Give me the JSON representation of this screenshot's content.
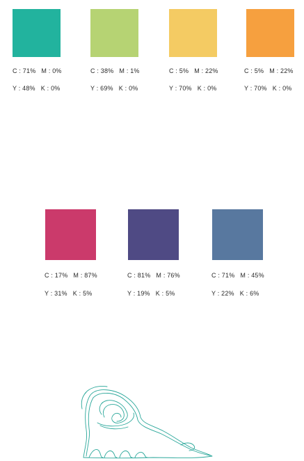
{
  "swatches": [
    {
      "color": "#22b39e",
      "c": "C : 71%",
      "m": "M : 0%",
      "y": "Y : 48%",
      "k": "K : 0%"
    },
    {
      "color": "#b6d373",
      "c": "C : 38%",
      "m": "M : 1%",
      "y": "Y : 69%",
      "k": "K : 0%"
    },
    {
      "color": "#f4cb63",
      "c": "C : 5%",
      "m": "M : 22%",
      "y": "Y : 70%",
      "k": "K : 0%"
    },
    {
      "color": "#f6a03f",
      "c": "C : 5%",
      "m": "M : 22%",
      "y": "Y : 70%",
      "k": "K : 0%"
    },
    {
      "color": "#cb3a6b",
      "c": "C : 17%",
      "m": "M : 87%",
      "y": "Y : 31%",
      "k": "K : 5%"
    },
    {
      "color": "#4f4a84",
      "c": "C : 81%",
      "m": "M : 76%",
      "y": "Y : 19%",
      "k": "K : 5%"
    },
    {
      "color": "#58789f",
      "c": "C : 71%",
      "m": "M : 45%",
      "y": "Y : 22%",
      "k": "K : 6%"
    }
  ],
  "sketch_color": "#2aa79a"
}
